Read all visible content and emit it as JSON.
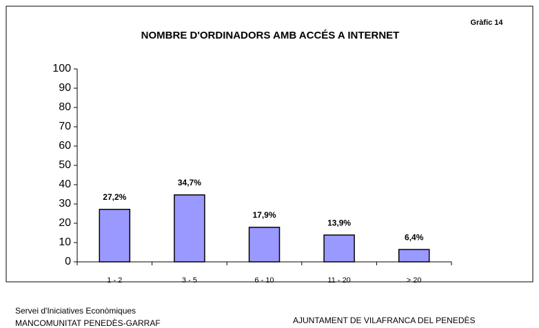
{
  "chart_data": {
    "type": "bar",
    "title": "NOMBRE D'ORDINADORS AMB  ACCÉS A INTERNET",
    "annotations": [
      "Gràfic 14",
      "Servei d'Iniciatives Econòmiques",
      "MANCOMUNITAT PENEDÈS-GARRAF",
      "AJUNTAMENT DE VILAFRANCA DEL PENEDÈS"
    ],
    "categories": [
      "1 -  2",
      "3 -  5",
      "6 - 10",
      "11 - 20",
      "> 20"
    ],
    "values": [
      27.2,
      34.7,
      17.9,
      13.9,
      6.4
    ],
    "value_labels": [
      "27,2%",
      "34,7%",
      "17,9%",
      "13,9%",
      "6,4%"
    ],
    "color": "#9999ff",
    "ylim": [
      0,
      100
    ],
    "yticks": [
      0,
      10,
      20,
      30,
      40,
      50,
      60,
      70,
      80,
      90,
      100
    ],
    "grid": false
  }
}
